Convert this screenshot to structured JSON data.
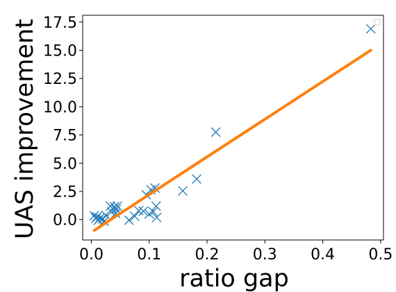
{
  "chart_data": {
    "type": "scatter",
    "xlabel": "ratio gap",
    "ylabel": "UAS improvement",
    "xlim": [
      -0.015,
      0.505
    ],
    "ylim": [
      -1.8,
      18.1
    ],
    "xticks": [
      "0.0",
      "0.1",
      "0.2",
      "0.3",
      "0.4",
      "0.5"
    ],
    "xtick_values": [
      0.0,
      0.1,
      0.2,
      0.3,
      0.4,
      0.5
    ],
    "yticks": [
      "0.0",
      "2.5",
      "5.0",
      "7.5",
      "10.0",
      "12.5",
      "15.0",
      "17.5"
    ],
    "ytick_values": [
      0.0,
      2.5,
      5.0,
      7.5,
      10.0,
      12.5,
      15.0,
      17.5
    ],
    "grid": false,
    "legend_placement": "top-right",
    "marker_color": "#1f77b4",
    "line_color": "#ff7f0e",
    "points": [
      {
        "x": 0.005,
        "y": 0.35
      },
      {
        "x": 0.008,
        "y": 0.1
      },
      {
        "x": 0.01,
        "y": 0.25
      },
      {
        "x": 0.012,
        "y": -0.05
      },
      {
        "x": 0.015,
        "y": 0.15
      },
      {
        "x": 0.02,
        "y": 0.05
      },
      {
        "x": 0.022,
        "y": -0.15
      },
      {
        "x": 0.025,
        "y": 0.4
      },
      {
        "x": 0.033,
        "y": 1.2
      },
      {
        "x": 0.035,
        "y": 0.7
      },
      {
        "x": 0.037,
        "y": 1.0
      },
      {
        "x": 0.04,
        "y": 1.15
      },
      {
        "x": 0.042,
        "y": 0.55
      },
      {
        "x": 0.045,
        "y": 1.2
      },
      {
        "x": 0.043,
        "y": 0.9
      },
      {
        "x": 0.065,
        "y": -0.05
      },
      {
        "x": 0.075,
        "y": 0.3
      },
      {
        "x": 0.082,
        "y": 0.8
      },
      {
        "x": 0.09,
        "y": 0.75
      },
      {
        "x": 0.095,
        "y": 2.2
      },
      {
        "x": 0.1,
        "y": 0.5
      },
      {
        "x": 0.103,
        "y": 2.65
      },
      {
        "x": 0.107,
        "y": 0.7
      },
      {
        "x": 0.11,
        "y": 2.8
      },
      {
        "x": 0.112,
        "y": 1.2
      },
      {
        "x": 0.113,
        "y": 0.2
      },
      {
        "x": 0.158,
        "y": 2.55
      },
      {
        "x": 0.182,
        "y": 3.6
      },
      {
        "x": 0.215,
        "y": 7.75
      },
      {
        "x": 0.483,
        "y": 16.9
      }
    ],
    "fit_line": {
      "x": [
        0.005,
        0.483
      ],
      "y": [
        -0.95,
        15.0
      ]
    }
  }
}
